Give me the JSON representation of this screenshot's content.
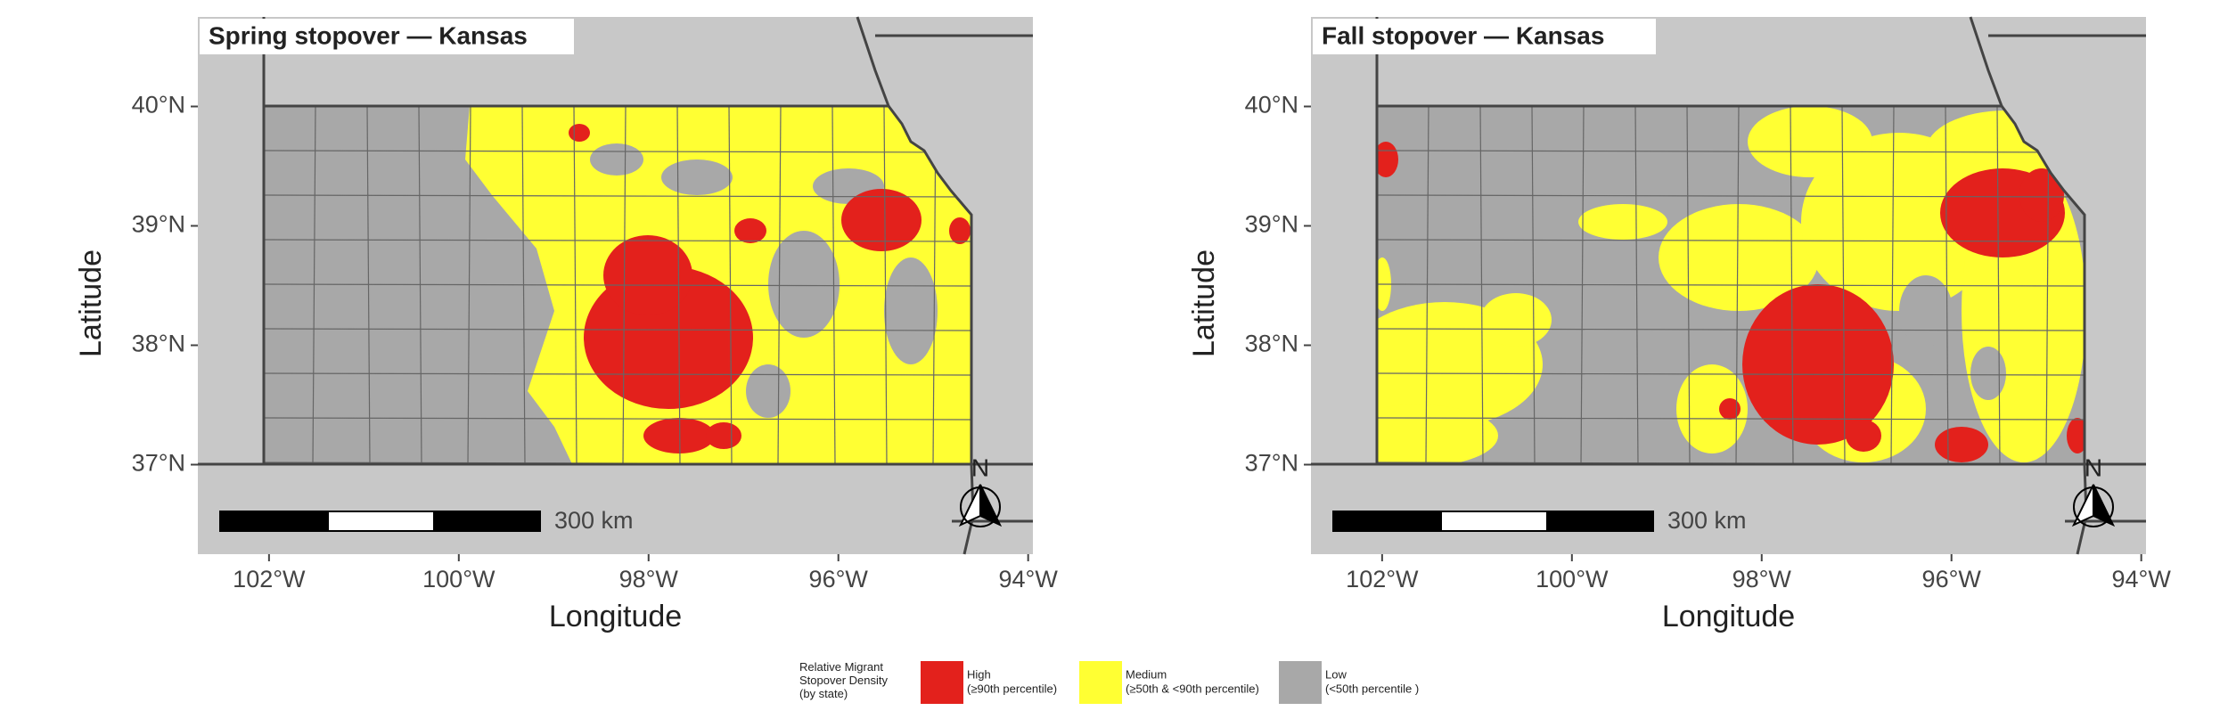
{
  "chart_data": [
    {
      "type": "map",
      "title": "Spring stopover — Kansas",
      "xlabel": "Longitude",
      "ylabel": "Latitude",
      "xlim": [
        -102.75,
        -93.95
      ],
      "ylim": [
        36.25,
        40.75
      ],
      "xticks": [
        {
          "value": -102,
          "label": "102°W"
        },
        {
          "value": -100,
          "label": "100°W"
        },
        {
          "value": -98,
          "label": "98°W"
        },
        {
          "value": -96,
          "label": "96°W"
        },
        {
          "value": -94,
          "label": "94°W"
        }
      ],
      "yticks": [
        {
          "value": 37,
          "label": "37°N"
        },
        {
          "value": 38,
          "label": "38°N"
        },
        {
          "value": 39,
          "label": "39°N"
        },
        {
          "value": 40,
          "label": "40°N"
        }
      ],
      "scale_bar": "300 km",
      "north": "N"
    },
    {
      "type": "map",
      "title": "Fall stopover — Kansas",
      "xlabel": "Longitude",
      "ylabel": "Latitude",
      "xlim": [
        -102.75,
        -93.95
      ],
      "ylim": [
        36.25,
        40.75
      ],
      "xticks": [
        {
          "value": -102,
          "label": "102°W"
        },
        {
          "value": -100,
          "label": "100°W"
        },
        {
          "value": -98,
          "label": "98°W"
        },
        {
          "value": -96,
          "label": "96°W"
        },
        {
          "value": -94,
          "label": "94°W"
        }
      ],
      "yticks": [
        {
          "value": 37,
          "label": "37°N"
        },
        {
          "value": 38,
          "label": "38°N"
        },
        {
          "value": 39,
          "label": "39°N"
        },
        {
          "value": 40,
          "label": "40°N"
        }
      ],
      "scale_bar": "300 km",
      "north": "N"
    }
  ],
  "legend": {
    "title": "Relative Migrant Stopover Density (by state)",
    "items": [
      {
        "label": "High",
        "sublabel": "(≥90th percentile)",
        "color": "#e3211c"
      },
      {
        "label": "Medium",
        "sublabel": "(≥50th & <90th percentile)",
        "color": "#ffff33"
      },
      {
        "label": "Low",
        "sublabel": "(<50th percentile )",
        "color": "#a8a8a8"
      }
    ]
  }
}
